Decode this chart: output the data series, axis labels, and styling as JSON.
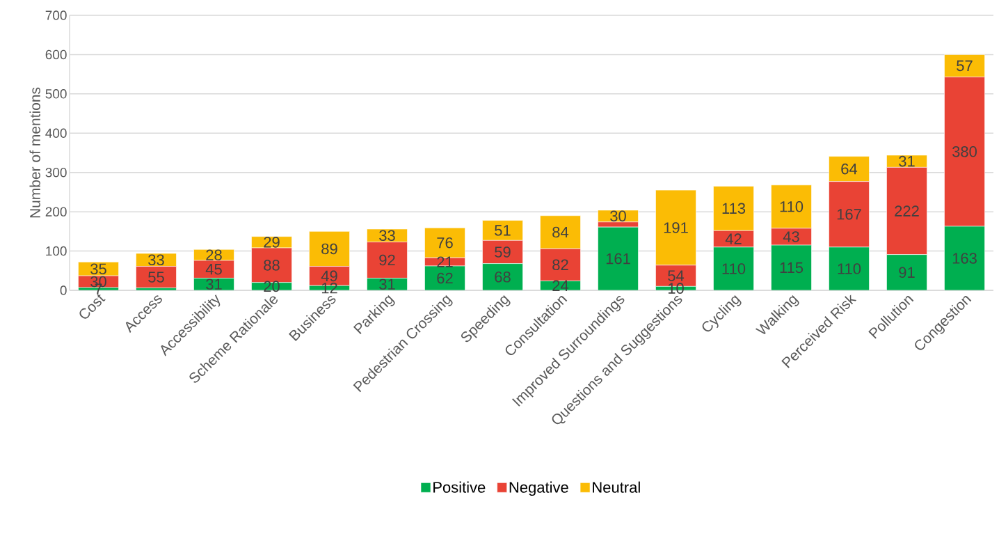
{
  "chart_data": {
    "type": "bar",
    "stacked": true,
    "ylabel": "Number of mentions",
    "categories": [
      "Cost",
      "Access",
      "Accessibility",
      "Scheme Rationale",
      "Business",
      "Parking",
      "Pedestrian Crossing",
      "Speeding",
      "Consultation",
      "Improved Surroundings",
      "Questions and Suggestions",
      "Cycling",
      "Walking",
      "Perceived Risk",
      "Pollution",
      "Congestion"
    ],
    "series": [
      {
        "name": "Positive",
        "color": "#00af50",
        "values": [
          7,
          6,
          31,
          20,
          12,
          31,
          62,
          68,
          24,
          161,
          10,
          110,
          115,
          110,
          91,
          163
        ],
        "value_labels": [
          "7",
          null,
          "31",
          "20",
          "12",
          "31",
          "62",
          "68",
          "24",
          "161",
          "10",
          "110",
          "115",
          "110",
          "91",
          "163"
        ]
      },
      {
        "name": "Negative",
        "color": "#e94335",
        "values": [
          30,
          55,
          45,
          88,
          49,
          92,
          21,
          59,
          82,
          13,
          54,
          42,
          43,
          167,
          222,
          380
        ],
        "value_labels": [
          "30",
          "55",
          "45",
          "88",
          "49",
          "92",
          "21",
          "59",
          "82",
          null,
          "54",
          "42",
          "43",
          "167",
          "222",
          "380"
        ]
      },
      {
        "name": "Neutral",
        "color": "#fbbc05",
        "values": [
          35,
          33,
          28,
          29,
          89,
          33,
          76,
          51,
          84,
          30,
          191,
          113,
          110,
          64,
          31,
          57
        ],
        "value_labels": [
          "35",
          "33",
          "28",
          "29",
          "89",
          "33",
          "76",
          "51",
          "84",
          "30",
          "191",
          "113",
          "110",
          "64",
          "31",
          "57"
        ]
      }
    ],
    "ylim": [
      0,
      700
    ],
    "yticks": [
      0,
      100,
      200,
      300,
      400,
      500,
      600,
      700
    ],
    "grid": "y",
    "legend": "bottom"
  }
}
